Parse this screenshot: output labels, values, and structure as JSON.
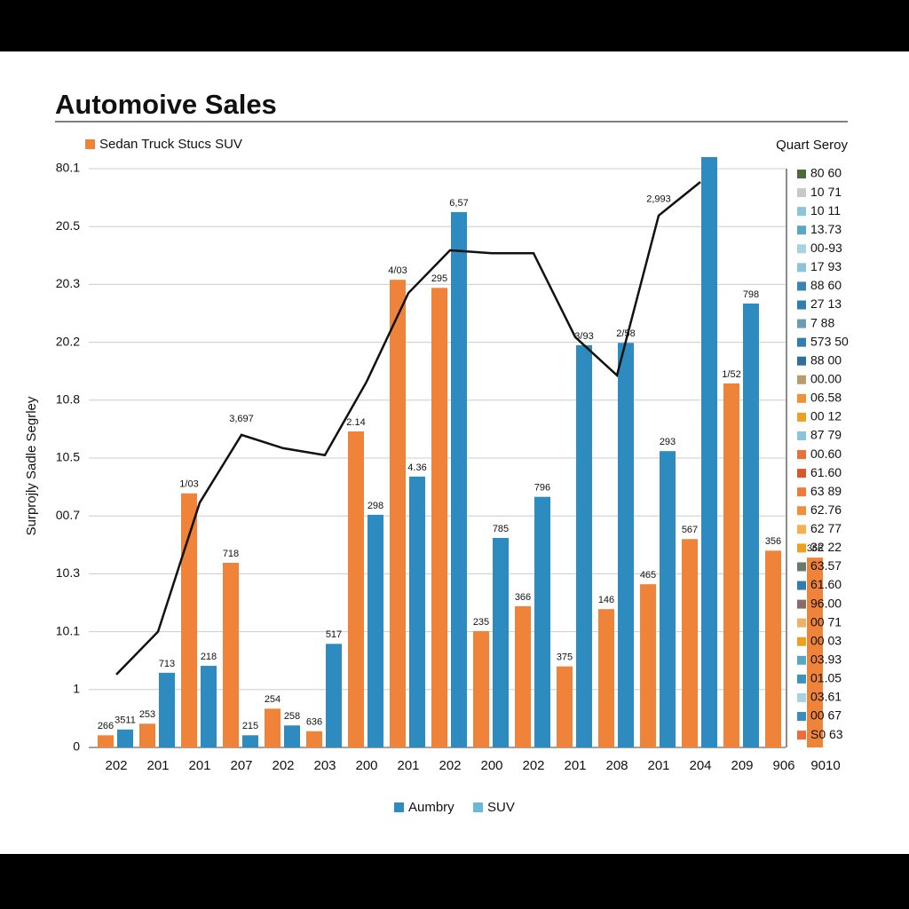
{
  "chart_data": {
    "type": "bar",
    "title": "Automoive Sales",
    "y_label": "Surprojly Sadle Segrley",
    "categories": [
      "202",
      "201",
      "201",
      "207",
      "202",
      "203",
      "200",
      "201",
      "202",
      "200",
      "202",
      "201",
      "208",
      "201",
      "204",
      "209",
      "906",
      "9010"
    ],
    "ylim": [
      0,
      104
    ],
    "yticks": [
      0,
      {
        "value": 10,
        "label": "1"
      },
      {
        "value": 20,
        "label": "10.1"
      },
      {
        "value": 30,
        "label": "10.3"
      },
      {
        "value": 40,
        "label": "00.7"
      },
      {
        "value": 50,
        "label": "10.5"
      },
      {
        "value": 60,
        "label": "10.8"
      },
      {
        "value": 70,
        "label": "20.2"
      },
      {
        "value": 80,
        "label": "20.3"
      },
      {
        "value": 90,
        "label": "20.5"
      },
      {
        "value": 100,
        "label": "80.1"
      }
    ],
    "grid": true,
    "series": [
      {
        "name": "Sedan Truck Stucs SUV",
        "color": "#f0833a",
        "values": [
          2.1,
          4.1,
          43.9,
          31.9,
          6.7,
          2.8,
          54.6,
          80.8,
          79.4,
          20.1,
          24.4,
          14.0,
          23.9,
          28.2,
          36.0,
          62.9,
          34.0,
          32.8
        ],
        "value_labels": [
          "266",
          "253",
          "1/03",
          "718",
          "254",
          "636",
          "2.14",
          "4/03",
          "295",
          "235",
          "366",
          "375",
          "146",
          "465",
          "567",
          "1/52",
          "356",
          "366"
        ]
      },
      {
        "name": "Aumbry",
        "color": "#2e8bbf",
        "values": [
          3.1,
          12.9,
          14.1,
          2.1,
          3.8,
          17.9,
          40.2,
          46.8,
          92.5,
          36.2,
          43.3,
          69.5,
          69.9,
          51.2,
          102,
          76.7,
          null,
          null
        ],
        "value_labels": [
          "3511",
          "713",
          "218",
          "215",
          "258",
          "517",
          "298",
          "4.36",
          "6,57",
          "785",
          "796",
          "3/93",
          "2/58",
          "293",
          null,
          "798",
          null,
          null
        ]
      },
      {
        "type": "line",
        "color": "#111111",
        "values": [
          12.6,
          20,
          42.3,
          54,
          51.7,
          50.5,
          63.2,
          78.5,
          85.9,
          85.4,
          85.4,
          70.9,
          64.3,
          91.9,
          97.7,
          null,
          null,
          null
        ],
        "value_labels": [
          null,
          null,
          null,
          "3,697",
          null,
          null,
          null,
          null,
          null,
          null,
          null,
          null,
          null,
          "2,993",
          null,
          null,
          null,
          null
        ]
      }
    ],
    "extra_legend": {
      "name": "SUV",
      "color": "#6ab7d8"
    },
    "panel": {
      "title": "Quart Seroy",
      "items": [
        {
          "label": "80 60",
          "color": "#4a6b3a"
        },
        {
          "label": "10 71",
          "color": "#c8c8c8"
        },
        {
          "label": "10 11",
          "color": "#8cc4dc"
        },
        {
          "label": "13.73",
          "color": "#5aa6c8"
        },
        {
          "label": "00-93",
          "color": "#a6d2e4"
        },
        {
          "label": "17 93",
          "color": "#8cc4dc"
        },
        {
          "label": "88 60",
          "color": "#3a84b4"
        },
        {
          "label": "27 13",
          "color": "#2e7fb0"
        },
        {
          "label": "7 88",
          "color": "#6a9cb4"
        },
        {
          "label": "573 50",
          "color": "#2e7fb0"
        },
        {
          "label": "88 00",
          "color": "#2e6f9c"
        },
        {
          "label": "00.00",
          "color": "#b89c6c"
        },
        {
          "label": "06.58",
          "color": "#f0903a"
        },
        {
          "label": "00 12",
          "color": "#f0a020"
        },
        {
          "label": "87 79",
          "color": "#8cc4dc"
        },
        {
          "label": "00.60",
          "color": "#e8703a"
        },
        {
          "label": "61.60",
          "color": "#d8582a"
        },
        {
          "label": "63 89",
          "color": "#f07a3a"
        },
        {
          "label": "62.76",
          "color": "#f0903a"
        },
        {
          "label": "62 77",
          "color": "#f4b04a"
        },
        {
          "label": "32 22",
          "color": "#f0a020"
        },
        {
          "label": "63.57",
          "color": "#6a7a6a"
        },
        {
          "label": "61.60",
          "color": "#2e7fb0"
        },
        {
          "label": "96.00",
          "color": "#8c6a6a"
        },
        {
          "label": "00 71",
          "color": "#f0b06a"
        },
        {
          "label": "00 03",
          "color": "#f0a020"
        },
        {
          "label": "03.93",
          "color": "#5aa6c8"
        },
        {
          "label": "01.05",
          "color": "#3a94bc"
        },
        {
          "label": "03.61",
          "color": "#a6d2e4"
        },
        {
          "label": "00 67",
          "color": "#3a8cbc"
        },
        {
          "label": "S0 63",
          "color": "#f06a3a"
        }
      ]
    }
  }
}
